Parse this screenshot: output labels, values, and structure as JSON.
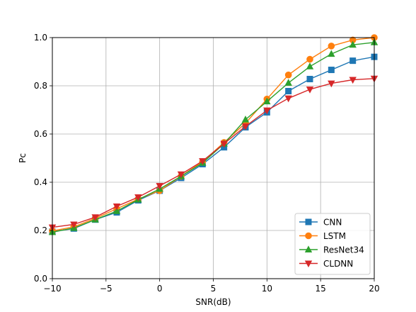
{
  "chart_data": {
    "type": "line",
    "xlabel": "SNR(dB)",
    "ylabel": "Pc",
    "xlim": [
      -10,
      20
    ],
    "ylim": [
      0.0,
      1.0
    ],
    "x": [
      -10,
      -8,
      -6,
      -4,
      -2,
      0,
      2,
      4,
      6,
      8,
      10,
      12,
      14,
      16,
      18,
      20
    ],
    "xticks": [
      -10,
      -5,
      0,
      5,
      10,
      15,
      20
    ],
    "xtick_labels": [
      "−10",
      "−5",
      "0",
      "5",
      "10",
      "15",
      "20"
    ],
    "yticks": [
      0.0,
      0.2,
      0.4,
      0.6,
      0.8,
      1.0
    ],
    "ytick_labels": [
      "0.0",
      "0.2",
      "0.4",
      "0.6",
      "0.8",
      "1.0"
    ],
    "grid": true,
    "legend_position": "lower-right",
    "series": [
      {
        "name": "CNN",
        "color": "#1f77b4",
        "marker": "square",
        "values": [
          0.195,
          0.208,
          0.245,
          0.275,
          0.325,
          0.365,
          0.418,
          0.475,
          0.545,
          0.628,
          0.69,
          0.778,
          0.828,
          0.866,
          0.904,
          0.92
        ]
      },
      {
        "name": "LSTM",
        "color": "#ff7f0e",
        "marker": "circle",
        "values": [
          0.198,
          0.215,
          0.25,
          0.29,
          0.33,
          0.365,
          0.425,
          0.485,
          0.565,
          0.645,
          0.745,
          0.845,
          0.91,
          0.965,
          0.99,
          1.0
        ]
      },
      {
        "name": "ResNet34",
        "color": "#2ca02c",
        "marker": "triangle-up",
        "values": [
          0.193,
          0.21,
          0.245,
          0.28,
          0.328,
          0.372,
          0.425,
          0.48,
          0.56,
          0.66,
          0.735,
          0.812,
          0.88,
          0.932,
          0.97,
          0.98
        ]
      },
      {
        "name": "CLDNN",
        "color": "#d62728",
        "marker": "triangle-down",
        "values": [
          0.213,
          0.225,
          0.255,
          0.3,
          0.338,
          0.385,
          0.433,
          0.488,
          0.56,
          0.632,
          0.698,
          0.748,
          0.785,
          0.81,
          0.825,
          0.83
        ]
      }
    ]
  }
}
